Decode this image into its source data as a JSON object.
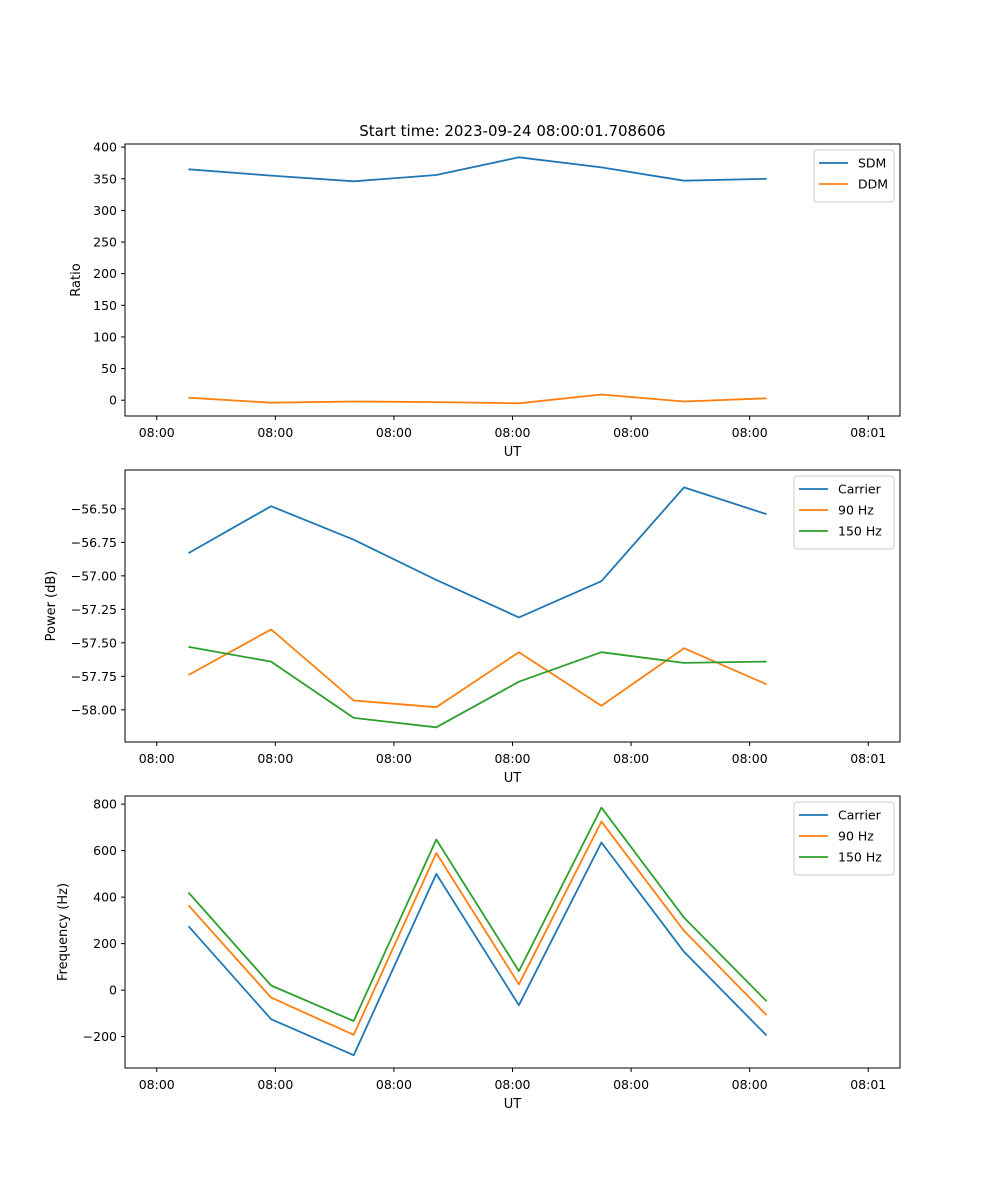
{
  "figure": {
    "title": "Start time: 2023-09-24 08:00:01.708606"
  },
  "chart_data": [
    {
      "type": "line",
      "ylabel": "Ratio",
      "xlabel": "UT",
      "x_tick_labels": [
        "08:00",
        "08:00",
        "08:00",
        "08:00",
        "08:00",
        "08:00",
        "08:01"
      ],
      "y_ticks": [
        0,
        50,
        100,
        150,
        200,
        250,
        300,
        350,
        400
      ],
      "y_tick_labels": [
        "0",
        "50",
        "100",
        "150",
        "200",
        "250",
        "300",
        "350",
        "400"
      ],
      "ylim": [
        -25,
        405
      ],
      "xlim": [
        -0.5,
        11.7
      ],
      "legend_position": "top-right",
      "series": [
        {
          "name": "SDM",
          "color": "#1f77b4",
          "x": [
            0.5,
            1.8,
            3.1,
            4.4,
            5.7,
            7.0,
            8.3,
            9.6
          ],
          "values": [
            365,
            355,
            346,
            356,
            384,
            368,
            347,
            350
          ]
        },
        {
          "name": "DDM",
          "color": "#ff7f0e",
          "x": [
            0.5,
            1.8,
            3.1,
            4.4,
            5.7,
            7.0,
            8.3,
            9.6
          ],
          "values": [
            4,
            -4,
            -2,
            -3,
            -5,
            9,
            -2,
            3
          ]
        }
      ]
    },
    {
      "type": "line",
      "ylabel": "Power (dB)",
      "xlabel": "UT",
      "x_tick_labels": [
        "08:00",
        "08:00",
        "08:00",
        "08:00",
        "08:00",
        "08:00",
        "08:01"
      ],
      "y_ticks": [
        -58.0,
        -57.75,
        -57.5,
        -57.25,
        -57.0,
        -56.75,
        -56.5
      ],
      "y_tick_labels": [
        "−58.00",
        "−57.75",
        "−57.50",
        "−57.25",
        "−57.00",
        "−56.75",
        "−56.50"
      ],
      "ylim": [
        -58.24,
        -56.21
      ],
      "xlim": [
        -0.5,
        11.7
      ],
      "legend_position": "top-right",
      "series": [
        {
          "name": "Carrier",
          "color": "#1f77b4",
          "x": [
            0.5,
            1.8,
            3.1,
            4.4,
            5.7,
            7.0,
            8.3,
            9.6
          ],
          "values": [
            -56.83,
            -56.48,
            -56.73,
            -57.03,
            -57.31,
            -57.04,
            -56.34,
            -56.54
          ]
        },
        {
          "name": "90 Hz",
          "color": "#ff7f0e",
          "x": [
            0.5,
            1.8,
            3.1,
            4.4,
            5.7,
            7.0,
            8.3,
            9.6
          ],
          "values": [
            -57.74,
            -57.4,
            -57.93,
            -57.98,
            -57.57,
            -57.97,
            -57.54,
            -57.81
          ]
        },
        {
          "name": "150 Hz",
          "color": "#2ca02c",
          "x": [
            0.5,
            1.8,
            3.1,
            4.4,
            5.7,
            7.0,
            8.3,
            9.6
          ],
          "values": [
            -57.53,
            -57.64,
            -58.06,
            -58.13,
            -57.79,
            -57.57,
            -57.65,
            -57.64
          ]
        }
      ]
    },
    {
      "type": "line",
      "ylabel": "Frequency (Hz)",
      "xlabel": "UT",
      "x_tick_labels": [
        "08:00",
        "08:00",
        "08:00",
        "08:00",
        "08:00",
        "08:00",
        "08:01"
      ],
      "y_ticks": [
        -200,
        0,
        200,
        400,
        600,
        800
      ],
      "y_tick_labels": [
        "−200",
        "0",
        "200",
        "400",
        "600",
        "800"
      ],
      "ylim": [
        -335,
        835
      ],
      "xlim": [
        -0.5,
        11.7
      ],
      "legend_position": "top-right",
      "series": [
        {
          "name": "Carrier",
          "color": "#1f77b4",
          "x": [
            0.5,
            1.8,
            3.1,
            4.4,
            5.7,
            7.0,
            8.3,
            9.6
          ],
          "values": [
            275,
            -125,
            -280,
            500,
            -65,
            635,
            165,
            -195
          ]
        },
        {
          "name": "90 Hz",
          "color": "#ff7f0e",
          "x": [
            0.5,
            1.8,
            3.1,
            4.4,
            5.7,
            7.0,
            8.3,
            9.6
          ],
          "values": [
            365,
            -32,
            -192,
            590,
            25,
            725,
            255,
            -108
          ]
        },
        {
          "name": "150 Hz",
          "color": "#2ca02c",
          "x": [
            0.5,
            1.8,
            3.1,
            4.4,
            5.7,
            7.0,
            8.3,
            9.6
          ],
          "values": [
            420,
            20,
            -133,
            648,
            82,
            785,
            312,
            -48
          ]
        }
      ]
    }
  ]
}
